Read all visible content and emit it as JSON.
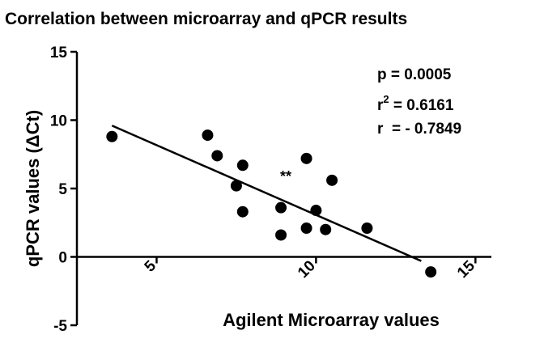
{
  "chart_data": {
    "type": "scatter",
    "title": "Correlation between microarray and qPCR results",
    "xlabel": "Agilent Microarray values",
    "ylabel": "qPCR values (ΔCt)",
    "xlim": [
      2.5,
      15.5
    ],
    "ylim": [
      -5,
      15
    ],
    "xticks": [
      "5",
      "10",
      "15"
    ],
    "yticks": [
      "15",
      "10",
      "5",
      "0",
      "-5"
    ],
    "grid": false,
    "points": [
      {
        "x": 3.6,
        "y": 8.8
      },
      {
        "x": 6.6,
        "y": 8.9
      },
      {
        "x": 6.9,
        "y": 7.4
      },
      {
        "x": 7.7,
        "y": 6.7
      },
      {
        "x": 7.5,
        "y": 5.2
      },
      {
        "x": 7.7,
        "y": 3.3
      },
      {
        "x": 8.9,
        "y": 3.6
      },
      {
        "x": 8.9,
        "y": 1.6
      },
      {
        "x": 9.7,
        "y": 7.2
      },
      {
        "x": 10.5,
        "y": 5.6
      },
      {
        "x": 10.0,
        "y": 3.4
      },
      {
        "x": 9.7,
        "y": 2.1
      },
      {
        "x": 10.3,
        "y": 2.0
      },
      {
        "x": 11.6,
        "y": 2.1
      },
      {
        "x": 13.6,
        "y": -1.1
      }
    ],
    "regression": {
      "x1": 3.6,
      "y1": 9.6,
      "x2": 13.3,
      "y2": -0.3
    },
    "annotations": {
      "significance": "**",
      "p": "p = 0.0005",
      "r2_prefix": "r",
      "r2_exp": "2",
      "r2_value": " = 0.6161",
      "r": "r  = - 0.7849"
    }
  }
}
